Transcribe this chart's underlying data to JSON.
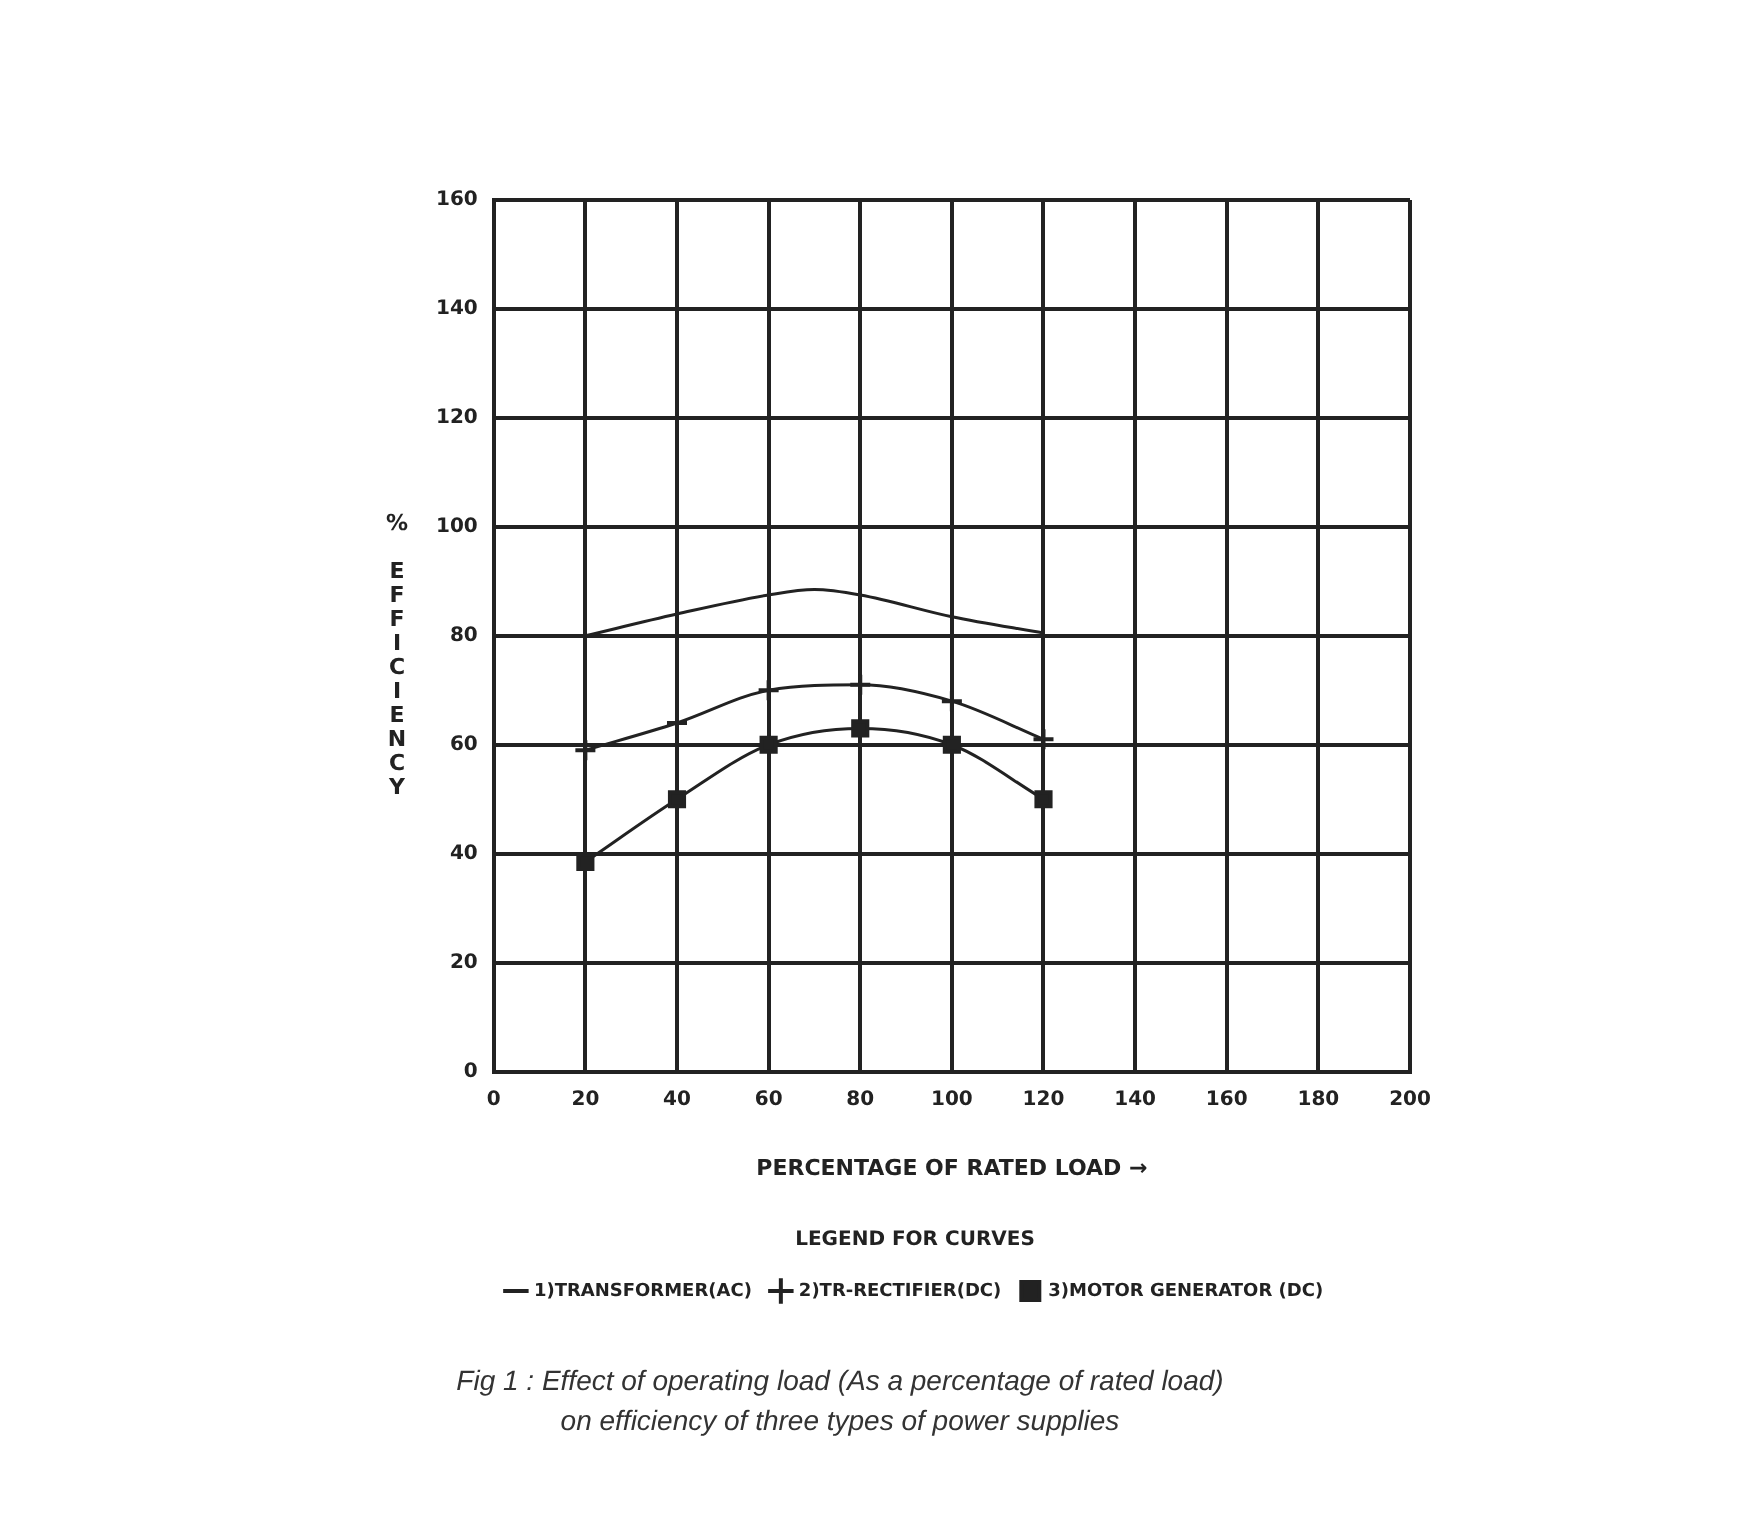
{
  "chart_data": {
    "type": "line",
    "xlabel": "PERCENTAGE OF RATED LOAD →",
    "ylabel": "% EFFICIENCY",
    "legend_title": "LEGEND FOR CURVES",
    "legend": "bottom",
    "grid": true,
    "xlim": [
      0,
      200
    ],
    "xticks": [
      0,
      20,
      40,
      60,
      80,
      100,
      120,
      140,
      160,
      180,
      200
    ],
    "ylim": [
      0,
      160
    ],
    "yticks": [
      0,
      20,
      40,
      60,
      80,
      100,
      120,
      140,
      160
    ],
    "series": [
      {
        "name": "1)TRANSFORMER(AC)",
        "color": "#222222",
        "marker": "none",
        "x": [
          20,
          40,
          60,
          70,
          80,
          100,
          120
        ],
        "values": [
          80,
          84,
          87.5,
          88.5,
          87.5,
          83.5,
          80.5
        ]
      },
      {
        "name": "2)TR-RECTIFIER(DC)",
        "color": "#222222",
        "marker": "cross",
        "x": [
          20,
          40,
          60,
          80,
          100,
          120
        ],
        "values": [
          59,
          64,
          70,
          71,
          68,
          61
        ]
      },
      {
        "name": "3)MOTOR GENERATOR (DC)",
        "color": "#222222",
        "marker": "square",
        "x": [
          20,
          40,
          60,
          80,
          100,
          120
        ],
        "values": [
          38.5,
          50,
          60,
          63,
          60,
          50
        ]
      }
    ],
    "annotations": [
      "Fig 1 : Effect of operating load (As a percentage of rated load)\non efficiency of three types of power supplies"
    ]
  }
}
